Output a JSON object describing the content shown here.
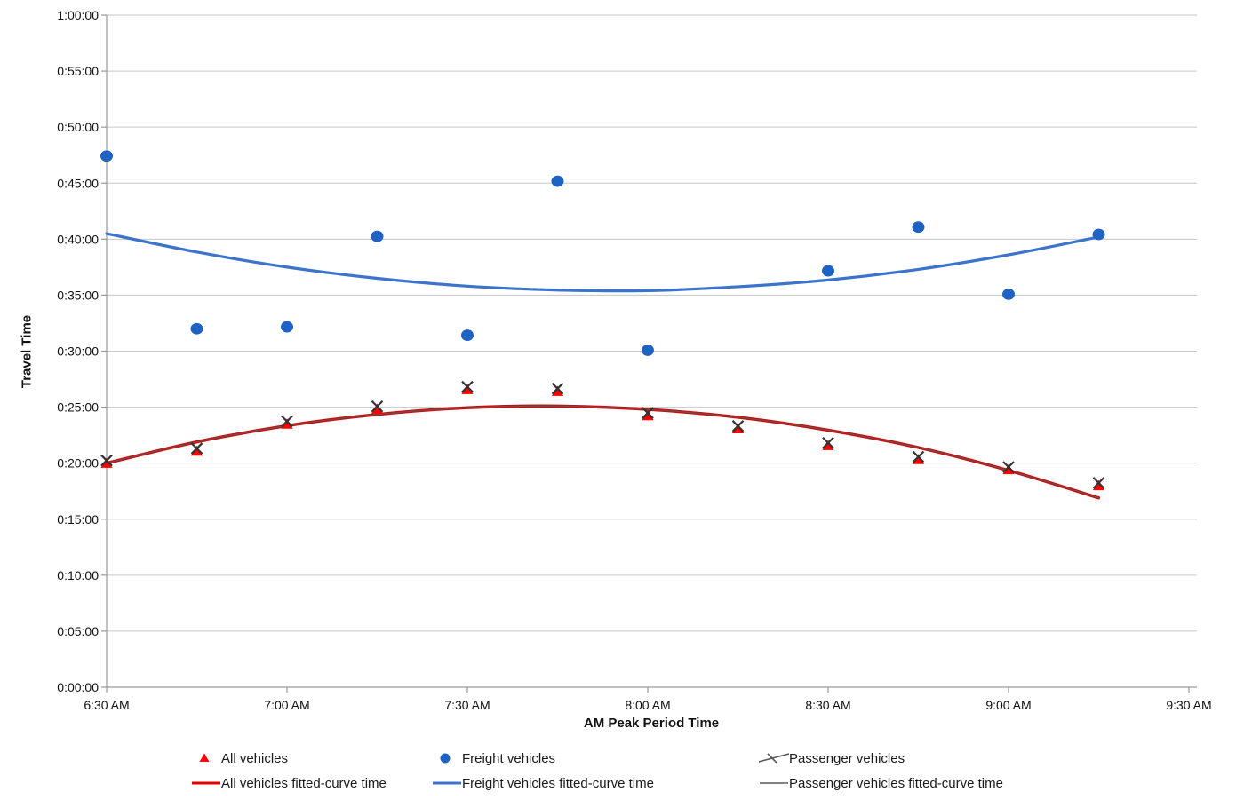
{
  "page": {
    "background": "#ffffff"
  },
  "chart_data": {
    "type": "scatter",
    "title": "",
    "xlabel": "AM Peak Period Time",
    "ylabel": "Travel Time",
    "x_axis": {
      "tick_labels": [
        "6:30 AM",
        "7:00 AM",
        "7:30 AM",
        "8:00 AM",
        "8:30 AM",
        "9:00 AM",
        "9:30 AM"
      ],
      "tick_minutes": [
        0,
        30,
        60,
        90,
        120,
        150,
        180
      ],
      "range_minutes": [
        0,
        181
      ],
      "grid": false
    },
    "y_axis": {
      "tick_labels": [
        "0:00:00",
        "0:05:00",
        "0:10:00",
        "0:15:00",
        "0:20:00",
        "0:25:00",
        "0:30:00",
        "0:35:00",
        "0:40:00",
        "0:45:00",
        "0:50:00",
        "0:55:00",
        "1:00:00"
      ],
      "tick_minutes": [
        0,
        5,
        10,
        15,
        20,
        25,
        30,
        35,
        40,
        45,
        50,
        55,
        60
      ],
      "range_minutes": [
        0,
        60
      ],
      "grid": true
    },
    "legend_position": "bottom",
    "series": [
      {
        "name": "All vehicles",
        "kind": "scatter",
        "marker": "triangle",
        "color": "#ff0000",
        "x_minutes": [
          0,
          15,
          30,
          45,
          60,
          75,
          90,
          105,
          120,
          135,
          150,
          165
        ],
        "x_times": [
          "6:30 AM",
          "6:45 AM",
          "7:00 AM",
          "7:15 AM",
          "7:30 AM",
          "7:45 AM",
          "8:00 AM",
          "8:15 AM",
          "8:30 AM",
          "8:45 AM",
          "9:00 AM",
          "9:15 AM"
        ],
        "y_minutes": [
          20.0,
          21.08,
          23.5,
          24.83,
          26.58,
          26.42,
          24.25,
          23.08,
          21.58,
          20.33,
          19.42,
          18.0
        ],
        "y_times": [
          "0:20:00",
          "0:21:05",
          "0:23:30",
          "0:24:50",
          "0:26:35",
          "0:26:25",
          "0:24:15",
          "0:23:05",
          "0:21:35",
          "0:20:20",
          "0:19:25",
          "0:18:00"
        ]
      },
      {
        "name": "Freight vehicles",
        "kind": "scatter",
        "marker": "circle",
        "color": "#1e63c4",
        "x_minutes": [
          0,
          15,
          30,
          45,
          60,
          75,
          90,
          120,
          135,
          150,
          165
        ],
        "x_times": [
          "6:30 AM",
          "6:45 AM",
          "7:00 AM",
          "7:15 AM",
          "7:30 AM",
          "7:45 AM",
          "8:00 AM",
          "8:30 AM",
          "8:45 AM",
          "9:00 AM",
          "9:15 AM"
        ],
        "y_minutes": [
          47.42,
          32.0,
          32.17,
          40.25,
          31.42,
          45.17,
          30.08,
          37.17,
          41.08,
          35.08,
          40.42
        ],
        "y_times": [
          "0:47:25",
          "0:32:00",
          "0:32:10",
          "0:40:15",
          "0:31:25",
          "0:45:10",
          "0:30:05",
          "0:37:10",
          "0:41:05",
          "0:35:05",
          "0:40:25"
        ]
      },
      {
        "name": "Passenger vehicles",
        "kind": "scatter",
        "marker": "x",
        "color": "#333333",
        "x_minutes": [
          0,
          15,
          30,
          45,
          60,
          75,
          90,
          105,
          120,
          135,
          150,
          165
        ],
        "x_times": [
          "6:30 AM",
          "6:45 AM",
          "7:00 AM",
          "7:15 AM",
          "7:30 AM",
          "7:45 AM",
          "8:00 AM",
          "8:15 AM",
          "8:30 AM",
          "8:45 AM",
          "9:00 AM",
          "9:15 AM"
        ],
        "y_minutes": [
          20.0,
          21.08,
          23.5,
          24.83,
          26.58,
          26.42,
          24.25,
          23.08,
          21.58,
          20.33,
          19.42,
          18.0
        ],
        "y_times": [
          "0:20:00",
          "0:21:05",
          "0:23:30",
          "0:24:50",
          "0:26:35",
          "0:26:25",
          "0:24:15",
          "0:23:05",
          "0:21:35",
          "0:20:20",
          "0:19:25",
          "0:18:00"
        ]
      },
      {
        "name": "All vehicles fitted-curve time",
        "kind": "line",
        "marker": "line",
        "color": "#e00000",
        "stroke_width": 3.4,
        "x_minutes": [
          0,
          15,
          30,
          45,
          60,
          75,
          90,
          105,
          120,
          135,
          150,
          165
        ],
        "y_minutes": [
          20.0,
          21.9,
          23.35,
          24.35,
          24.95,
          25.1,
          24.8,
          24.1,
          22.95,
          21.4,
          19.35,
          16.9
        ]
      },
      {
        "name": "Freight vehicles fitted-curve time",
        "kind": "line",
        "marker": "line",
        "color": "#3c74cc",
        "stroke_width": 3.2,
        "x_minutes": [
          0,
          15,
          30,
          45,
          60,
          75,
          90,
          105,
          120,
          135,
          150,
          165
        ],
        "y_minutes": [
          40.5,
          38.85,
          37.5,
          36.5,
          35.8,
          35.45,
          35.4,
          35.75,
          36.35,
          37.3,
          38.6,
          40.2
        ]
      },
      {
        "name": "Passenger vehicles fitted-curve time",
        "kind": "line",
        "marker": "line",
        "color": "#595959",
        "stroke_width": 1.2,
        "x_minutes": [
          0,
          15,
          30,
          45,
          60,
          75,
          90,
          105,
          120,
          135,
          150,
          165
        ],
        "y_minutes": [
          20.0,
          21.9,
          23.35,
          24.35,
          24.95,
          25.1,
          24.8,
          24.1,
          22.95,
          21.4,
          19.35,
          16.9
        ]
      }
    ]
  },
  "style": {
    "gridline_color": "#c6c6c6",
    "axis_line_color": "#9a9a9a",
    "tick_label_color": "#111111",
    "tick_font_px": 14
  }
}
